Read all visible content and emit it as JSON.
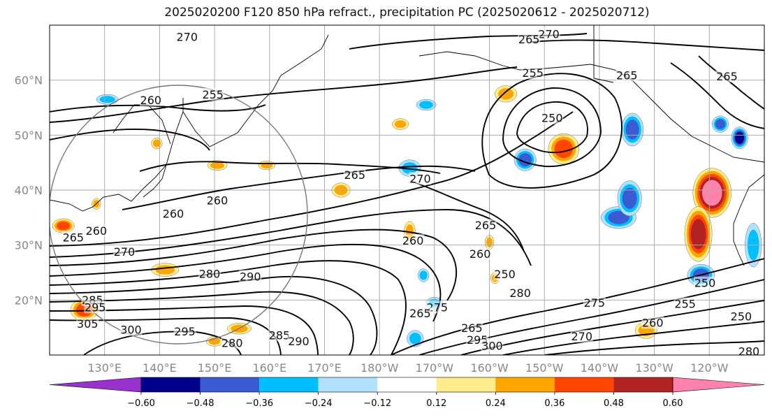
{
  "title": "2025020200 F120 850 hPa refract., precipitation PC (2025020612 - 2025020712)",
  "chart_data": {
    "type": "map-contour",
    "map_extent": {
      "lon": [
        120,
        250
      ],
      "lat": [
        10,
        70
      ]
    },
    "lat_ticks": [
      {
        "lat": 60,
        "label": "60°N"
      },
      {
        "lat": 50,
        "label": "50°N"
      },
      {
        "lat": 40,
        "label": "40°N"
      },
      {
        "lat": 30,
        "label": "30°N"
      },
      {
        "lat": 20,
        "label": "20°N"
      }
    ],
    "lon_ticks": [
      {
        "lon": 130,
        "label": "130°E"
      },
      {
        "lon": 140,
        "label": "140°E"
      },
      {
        "lon": 150,
        "label": "150°E"
      },
      {
        "lon": 160,
        "label": "160°E"
      },
      {
        "lon": 170,
        "label": "170°E"
      },
      {
        "lon": 180,
        "label": "180°W"
      },
      {
        "lon": 190,
        "label": "170°W"
      },
      {
        "lon": 200,
        "label": "160°W"
      },
      {
        "lon": 210,
        "label": "150°W"
      },
      {
        "lon": 220,
        "label": "140°W"
      },
      {
        "lon": 230,
        "label": "130°W"
      },
      {
        "lon": 240,
        "label": "120°W"
      }
    ],
    "contour_labels": [
      {
        "text": "270",
        "lon": 145,
        "lat": 67.8
      },
      {
        "text": "270",
        "lon": 210.8,
        "lat": 68.3
      },
      {
        "text": "265",
        "lon": 207.2,
        "lat": 67.3
      },
      {
        "text": "255",
        "lon": 149.7,
        "lat": 57.3
      },
      {
        "text": "255",
        "lon": 207.9,
        "lat": 61.2
      },
      {
        "text": "260",
        "lon": 138.4,
        "lat": 56.3
      },
      {
        "text": "250",
        "lon": 211.4,
        "lat": 53
      },
      {
        "text": "265",
        "lon": 225,
        "lat": 60.8
      },
      {
        "text": "265",
        "lon": 243.2,
        "lat": 60.6
      },
      {
        "text": "265",
        "lon": 175.5,
        "lat": 42.7
      },
      {
        "text": "270",
        "lon": 187.4,
        "lat": 42
      },
      {
        "text": "260",
        "lon": 150.5,
        "lat": 38
      },
      {
        "text": "260",
        "lon": 142.5,
        "lat": 35.6
      },
      {
        "text": "260",
        "lon": 128.5,
        "lat": 32.5
      },
      {
        "text": "265",
        "lon": 124.3,
        "lat": 31.3
      },
      {
        "text": "270",
        "lon": 133.6,
        "lat": 28.7
      },
      {
        "text": "265",
        "lon": 199.3,
        "lat": 33.5
      },
      {
        "text": "260",
        "lon": 186.1,
        "lat": 30.7
      },
      {
        "text": "260",
        "lon": 198.3,
        "lat": 28.3
      },
      {
        "text": "250",
        "lon": 202.8,
        "lat": 24.6
      },
      {
        "text": "280",
        "lon": 149.1,
        "lat": 24.7
      },
      {
        "text": "290",
        "lon": 156.5,
        "lat": 24.2
      },
      {
        "text": "280",
        "lon": 205.6,
        "lat": 21.2
      },
      {
        "text": "285",
        "lon": 127.8,
        "lat": 19.9
      },
      {
        "text": "295",
        "lon": 128.3,
        "lat": 18.6
      },
      {
        "text": "305",
        "lon": 126.9,
        "lat": 15.6
      },
      {
        "text": "300",
        "lon": 134.8,
        "lat": 14.5
      },
      {
        "text": "295",
        "lon": 144.6,
        "lat": 14.2
      },
      {
        "text": "280",
        "lon": 153.2,
        "lat": 12.1
      },
      {
        "text": "285",
        "lon": 161.8,
        "lat": 13.5
      },
      {
        "text": "290",
        "lon": 165.3,
        "lat": 12.4
      },
      {
        "text": "275",
        "lon": 190.5,
        "lat": 18.6
      },
      {
        "text": "265",
        "lon": 187.4,
        "lat": 17.5
      },
      {
        "text": "265",
        "lon": 196.8,
        "lat": 14.8
      },
      {
        "text": "295",
        "lon": 197.8,
        "lat": 12.7
      },
      {
        "text": "300",
        "lon": 200.5,
        "lat": 11.6
      },
      {
        "text": "275",
        "lon": 219.1,
        "lat": 19.4
      },
      {
        "text": "270",
        "lon": 216.8,
        "lat": 13.3
      },
      {
        "text": "260",
        "lon": 229.7,
        "lat": 15.8
      },
      {
        "text": "250",
        "lon": 245.8,
        "lat": 16.9
      },
      {
        "text": "255",
        "lon": 235.6,
        "lat": 19.2
      },
      {
        "text": "250",
        "lon": 239.2,
        "lat": 23
      },
      {
        "text": "280",
        "lon": 247.2,
        "lat": 10.6
      }
    ],
    "color_levels": [
      {
        "range": "< -0.60",
        "color": "#9932cc"
      },
      {
        "range": "-0.60 to -0.48",
        "color": "#00008b"
      },
      {
        "range": "-0.48 to -0.36",
        "color": "#3a5bd2"
      },
      {
        "range": "-0.36 to -0.24",
        "color": "#00bfff"
      },
      {
        "range": "-0.24 to -0.12",
        "color": "#b0e2ff"
      },
      {
        "range": "-0.12 to 0.12",
        "color": "#ffffff"
      },
      {
        "range": "0.12 to 0.24",
        "color": "#ffec8b"
      },
      {
        "range": "0.24 to 0.36",
        "color": "#ffa500"
      },
      {
        "range": "0.36 to 0.48",
        "color": "#ff4500"
      },
      {
        "range": "0.48 to 0.60",
        "color": "#b22222"
      },
      {
        "range": "> 0.60",
        "color": "#ff82ab"
      }
    ],
    "colorbar_ticks": [
      "−0.60",
      "−0.48",
      "−0.36",
      "−0.24",
      "−0.12",
      "0.12",
      "0.24",
      "0.36",
      "0.48",
      "0.60"
    ],
    "blobs": [
      {
        "lon": 240.5,
        "lat": 39.5,
        "rx": 3.5,
        "ry": 4.5,
        "level": 10
      },
      {
        "lon": 238.0,
        "lat": 32.0,
        "rx": 2.5,
        "ry": 5.0,
        "level": 9
      },
      {
        "lon": 213.5,
        "lat": 47.5,
        "rx": 2.8,
        "ry": 2.8,
        "level": 8
      },
      {
        "lon": 126.3,
        "lat": 18.2,
        "rx": 2.5,
        "ry": 2.0,
        "level": 8
      },
      {
        "lon": 122.5,
        "lat": 33.5,
        "rx": 2.0,
        "ry": 1.3,
        "level": 8
      },
      {
        "lon": 223.5,
        "lat": 35.0,
        "rx": 3.2,
        "ry": 2.0,
        "level": 2
      },
      {
        "lon": 225.5,
        "lat": 38.5,
        "rx": 2.2,
        "ry": 3.2,
        "level": 2
      },
      {
        "lon": 226.0,
        "lat": 51.0,
        "rx": 2.0,
        "ry": 3.0,
        "level": 2
      },
      {
        "lon": 245.5,
        "lat": 49.5,
        "rx": 1.5,
        "ry": 2.0,
        "level": 1
      },
      {
        "lon": 242.0,
        "lat": 52.0,
        "rx": 1.5,
        "ry": 1.5,
        "level": 2
      },
      {
        "lon": 238.5,
        "lat": 24.5,
        "rx": 2.5,
        "ry": 2.0,
        "level": 2
      },
      {
        "lon": 248.0,
        "lat": 30.0,
        "rx": 1.5,
        "ry": 4.0,
        "level": 3
      },
      {
        "lon": 206.5,
        "lat": 45.5,
        "rx": 2.0,
        "ry": 2.0,
        "level": 2
      },
      {
        "lon": 185.5,
        "lat": 44.0,
        "rx": 2.0,
        "ry": 1.5,
        "level": 3
      },
      {
        "lon": 188.0,
        "lat": 24.5,
        "rx": 1.0,
        "ry": 1.2,
        "level": 3
      },
      {
        "lon": 190.0,
        "lat": 19.5,
        "rx": 1.5,
        "ry": 1.0,
        "level": 3
      },
      {
        "lon": 186.5,
        "lat": 13.0,
        "rx": 1.5,
        "ry": 1.5,
        "level": 3
      },
      {
        "lon": 188.5,
        "lat": 55.5,
        "rx": 1.8,
        "ry": 1.0,
        "level": 3
      },
      {
        "lon": 130.5,
        "lat": 56.5,
        "rx": 2.0,
        "ry": 0.9,
        "level": 3
      },
      {
        "lon": 203.0,
        "lat": 57.5,
        "rx": 2.0,
        "ry": 1.5,
        "level": 7
      },
      {
        "lon": 183.8,
        "lat": 52.0,
        "rx": 1.5,
        "ry": 1.0,
        "level": 7
      },
      {
        "lon": 173.0,
        "lat": 40.0,
        "rx": 1.7,
        "ry": 1.3,
        "level": 7
      },
      {
        "lon": 185.5,
        "lat": 32.5,
        "rx": 1.0,
        "ry": 1.8,
        "level": 7
      },
      {
        "lon": 200.0,
        "lat": 30.5,
        "rx": 0.8,
        "ry": 1.3,
        "level": 7
      },
      {
        "lon": 141.0,
        "lat": 25.5,
        "rx": 2.5,
        "ry": 1.2,
        "level": 7
      },
      {
        "lon": 154.5,
        "lat": 14.8,
        "rx": 2.2,
        "ry": 1.0,
        "level": 7
      },
      {
        "lon": 150.0,
        "lat": 12.5,
        "rx": 1.5,
        "ry": 0.9,
        "level": 7
      },
      {
        "lon": 150.5,
        "lat": 44.5,
        "rx": 1.8,
        "ry": 0.9,
        "level": 7
      },
      {
        "lon": 159.5,
        "lat": 44.5,
        "rx": 1.5,
        "ry": 0.8,
        "level": 7
      },
      {
        "lon": 139.5,
        "lat": 48.5,
        "rx": 1.0,
        "ry": 1.0,
        "level": 7
      },
      {
        "lon": 228.5,
        "lat": 14.5,
        "rx": 2.0,
        "ry": 1.5,
        "level": 7
      },
      {
        "lon": 201.0,
        "lat": 24.0,
        "rx": 0.8,
        "ry": 1.0,
        "level": 7
      },
      {
        "lon": 128.5,
        "lat": 37.5,
        "rx": 0.8,
        "ry": 1.0,
        "level": 7
      }
    ]
  }
}
